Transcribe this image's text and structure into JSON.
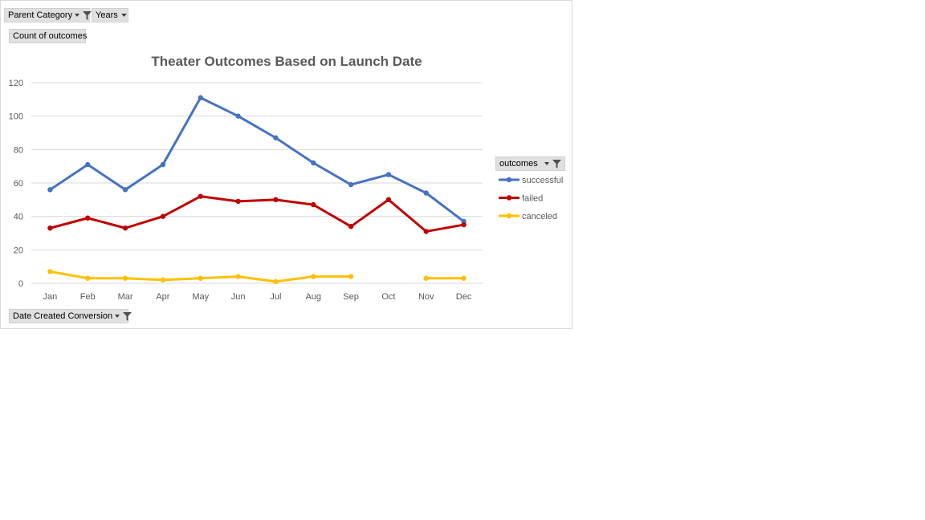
{
  "filters": {
    "parent_category": "Parent Category",
    "years": "Years",
    "values_field": "Count of outcomes",
    "axis_field": "Date Created Conversion",
    "legend_field": "outcomes"
  },
  "colors": {
    "successful": "#4472c4",
    "failed": "#c00000",
    "canceled": "#ffc000",
    "grid": "#d9d9d9",
    "axis_text": "#595959",
    "title": "#595959"
  },
  "icons": {
    "filter": "funnel-filter-icon",
    "dropdown": "dropdown-arrow-icon"
  },
  "chart_data": {
    "type": "line",
    "title": "Theater Outcomes Based on Launch Date",
    "xlabel": "",
    "ylabel": "",
    "ylim": [
      0,
      120
    ],
    "yticks": [
      0,
      20,
      40,
      60,
      80,
      100,
      120
    ],
    "grid": true,
    "legend_position": "right",
    "categories": [
      "Jan",
      "Feb",
      "Mar",
      "Apr",
      "May",
      "Jun",
      "Jul",
      "Aug",
      "Sep",
      "Oct",
      "Nov",
      "Dec"
    ],
    "series": [
      {
        "name": "successful",
        "values": [
          56,
          71,
          56,
          71,
          111,
          100,
          87,
          72,
          59,
          65,
          54,
          37
        ]
      },
      {
        "name": "failed",
        "values": [
          33,
          39,
          33,
          40,
          52,
          49,
          50,
          47,
          34,
          50,
          31,
          35
        ]
      },
      {
        "name": "canceled",
        "values": [
          7,
          3,
          3,
          2,
          3,
          4,
          1,
          4,
          4,
          null,
          3,
          3
        ]
      }
    ]
  }
}
